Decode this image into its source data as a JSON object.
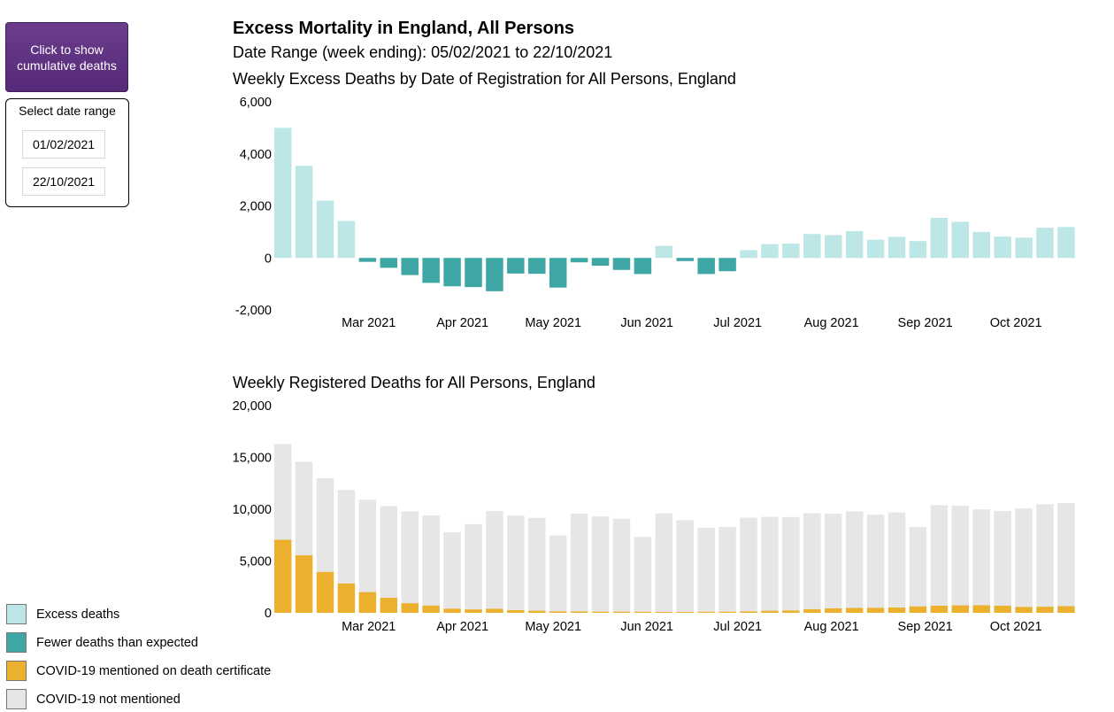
{
  "controls": {
    "cumulative_button_label": "Click to show cumulative deaths",
    "date_range_title": "Select date range",
    "start_date": "01/02/2021",
    "end_date": "22/10/2021"
  },
  "header": {
    "title": "Excess Mortality in England, All Persons",
    "subtitle": "Date Range (week ending): 05/02/2021 to 22/10/2021"
  },
  "colors": {
    "excess": "#bde6e6",
    "fewer": "#3ea7a6",
    "covid": "#ebb12e",
    "not_covid": "#e6e6e6",
    "axis_text": "#000000"
  },
  "legend": [
    {
      "label": "Excess deaths",
      "color": "#bde6e6"
    },
    {
      "label": "Fewer deaths than expected",
      "color": "#3ea7a6"
    },
    {
      "label": "COVID-19 mentioned on death certificate",
      "color": "#ebb12e"
    },
    {
      "label": "COVID-19 not mentioned",
      "color": "#e6e6e6"
    }
  ],
  "chart_data": [
    {
      "type": "bar",
      "title": "Weekly Excess Deaths by Date of Registration for All Persons, England",
      "xlabel": "",
      "ylabel": "",
      "ylim": [
        -2000,
        6000
      ],
      "y_ticks": [
        6000,
        4000,
        2000,
        0,
        -2000
      ],
      "y_tick_labels": [
        "6,000",
        "4,000",
        "2,000",
        "0",
        "-2,000"
      ],
      "x_tick_labels": [
        "Mar 2021",
        "Apr 2021",
        "May 2021",
        "Jun 2021",
        "Jul 2021",
        "Aug 2021",
        "Sep 2021",
        "Oct 2021"
      ],
      "x_tick_positions": [
        "2021-03-01",
        "2021-04-01",
        "2021-05-01",
        "2021-06-01",
        "2021-07-01",
        "2021-08-01",
        "2021-09-01",
        "2021-10-01"
      ],
      "x_domain": [
        "2021-02-01",
        "2021-10-27"
      ],
      "week_ending": [
        "2021-02-05",
        "2021-02-12",
        "2021-02-19",
        "2021-02-26",
        "2021-03-05",
        "2021-03-12",
        "2021-03-19",
        "2021-03-26",
        "2021-04-02",
        "2021-04-09",
        "2021-04-16",
        "2021-04-23",
        "2021-04-30",
        "2021-05-07",
        "2021-05-14",
        "2021-05-21",
        "2021-05-28",
        "2021-06-04",
        "2021-06-11",
        "2021-06-18",
        "2021-06-25",
        "2021-07-02",
        "2021-07-09",
        "2021-07-16",
        "2021-07-23",
        "2021-07-30",
        "2021-08-06",
        "2021-08-13",
        "2021-08-20",
        "2021-08-27",
        "2021-09-03",
        "2021-09-10",
        "2021-09-17",
        "2021-09-24",
        "2021-10-01",
        "2021-10-08",
        "2021-10-15",
        "2021-10-22"
      ],
      "values": [
        5000,
        3540,
        2200,
        1420,
        -150,
        -380,
        -660,
        -960,
        -1090,
        -1120,
        -1280,
        -600,
        -610,
        -1140,
        -170,
        -300,
        -460,
        -620,
        460,
        -120,
        -620,
        -510,
        300,
        530,
        550,
        920,
        880,
        1030,
        700,
        810,
        650,
        1540,
        1390,
        1000,
        820,
        780,
        1160,
        1190
      ],
      "positive_label": "Excess deaths",
      "negative_label": "Fewer deaths than expected"
    },
    {
      "type": "bar",
      "title": "Weekly Registered Deaths for All Persons, England",
      "xlabel": "",
      "ylabel": "",
      "stacked": true,
      "ylim": [
        0,
        20000
      ],
      "y_ticks": [
        20000,
        15000,
        10000,
        5000,
        0
      ],
      "y_tick_labels": [
        "20,000",
        "15,000",
        "10,000",
        "5,000",
        "0"
      ],
      "x_tick_labels": [
        "Mar 2021",
        "Apr 2021",
        "May 2021",
        "Jun 2021",
        "Jul 2021",
        "Aug 2021",
        "Sep 2021",
        "Oct 2021"
      ],
      "x_tick_positions": [
        "2021-03-01",
        "2021-04-01",
        "2021-05-01",
        "2021-06-01",
        "2021-07-01",
        "2021-08-01",
        "2021-09-01",
        "2021-10-01"
      ],
      "x_domain": [
        "2021-02-01",
        "2021-10-27"
      ],
      "week_ending": [
        "2021-02-05",
        "2021-02-12",
        "2021-02-19",
        "2021-02-26",
        "2021-03-05",
        "2021-03-12",
        "2021-03-19",
        "2021-03-26",
        "2021-04-02",
        "2021-04-09",
        "2021-04-16",
        "2021-04-23",
        "2021-04-30",
        "2021-05-07",
        "2021-05-14",
        "2021-05-21",
        "2021-05-28",
        "2021-06-04",
        "2021-06-11",
        "2021-06-18",
        "2021-06-25",
        "2021-07-02",
        "2021-07-09",
        "2021-07-16",
        "2021-07-23",
        "2021-07-30",
        "2021-08-06",
        "2021-08-13",
        "2021-08-20",
        "2021-08-27",
        "2021-09-03",
        "2021-09-10",
        "2021-09-17",
        "2021-09-24",
        "2021-10-01",
        "2021-10-08",
        "2021-10-15",
        "2021-10-22"
      ],
      "series": [
        {
          "name": "COVID-19 mentioned on death certificate",
          "values": [
            7050,
            5550,
            3950,
            2830,
            2000,
            1450,
            930,
            700,
            400,
            330,
            390,
            260,
            200,
            140,
            130,
            110,
            110,
            100,
            90,
            90,
            100,
            110,
            140,
            200,
            230,
            350,
            430,
            470,
            480,
            510,
            620,
            690,
            720,
            730,
            680,
            570,
            590,
            640
          ]
        },
        {
          "name": "COVID-19 not mentioned",
          "values": [
            9240,
            9030,
            9040,
            9030,
            8920,
            8850,
            8850,
            8700,
            7370,
            8220,
            9440,
            9130,
            8970,
            7330,
            9460,
            9190,
            8960,
            7240,
            9520,
            8850,
            8120,
            8180,
            9040,
            9070,
            9020,
            9260,
            9130,
            9310,
            8990,
            9180,
            7660,
            9700,
            9620,
            9250,
            9150,
            9510,
            9880,
            9950
          ]
        }
      ]
    }
  ]
}
